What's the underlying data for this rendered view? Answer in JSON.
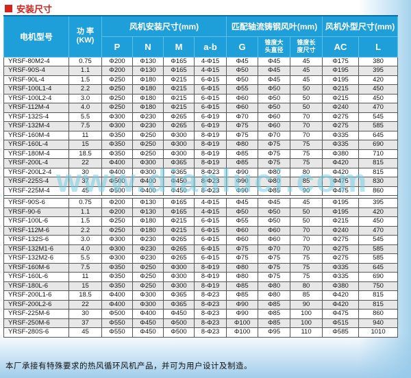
{
  "title": "安装尺寸",
  "watermark": "www.dianluci.com",
  "footer": "本厂承接有特殊要求的热风循环风机产品，并可为用户设计及制造。",
  "colors": {
    "header_bg": "#1e9fd9",
    "title_red": "#d3231c",
    "alt_row": "#e7e7e7",
    "outer_border": "#0b6fa6",
    "watermark_cyan": "#74cee2"
  },
  "table": {
    "headers": {
      "model": "电机型号",
      "power_label": "功 率",
      "power_unit": "(KW)",
      "group_install": "风机安装尺寸(mm)",
      "group_blade": "匹配轴流铸钢风叶(mm)",
      "group_outline": "风机外型尺寸(mm)",
      "sub": {
        "p": "P",
        "n": "N",
        "m": "M",
        "ab": "a-b",
        "g": "G",
        "cone_dia": "锥度大头直径",
        "cone_len": "锥度长度尺寸",
        "ac": "AC",
        "l": "L"
      }
    },
    "columns": [
      "电机型号",
      "功率(KW)",
      "P",
      "N",
      "M",
      "a-b",
      "G",
      "锥度大头直径",
      "锥度长度尺寸",
      "AC",
      "L"
    ],
    "groups": [
      {
        "rows": [
          [
            "YRSF-80M2-4",
            "0.75",
            "Φ200",
            "Φ130",
            "Φ165",
            "4-Φ15",
            "Φ45",
            "Φ45",
            "45",
            "Φ175",
            "380"
          ],
          [
            "YRSF-90S-4",
            "1.1",
            "Φ200",
            "Φ130",
            "Φ165",
            "4-Φ15",
            "Φ50",
            "Φ45",
            "45",
            "Φ195",
            "395"
          ],
          [
            "YRSF-90L-4",
            "1.5",
            "Φ250",
            "Φ180",
            "Φ215",
            "6-Φ15",
            "Φ50",
            "Φ45",
            "45",
            "Φ195",
            "420"
          ],
          [
            "YRSF-100L1-4",
            "2.2",
            "Φ250",
            "Φ180",
            "Φ215",
            "6-Φ15",
            "Φ55",
            "Φ50",
            "50",
            "Φ215",
            "450"
          ],
          [
            "YRSF-100L2-4",
            "3.0",
            "Φ250",
            "Φ180",
            "Φ215",
            "6-Φ15",
            "Φ60",
            "Φ50",
            "50",
            "Φ215",
            "450"
          ],
          [
            "YRSF-112M-4",
            "4.0",
            "Φ250",
            "Φ180",
            "Φ215",
            "6-Φ15",
            "Φ60",
            "Φ50",
            "50",
            "Φ240",
            "470"
          ],
          [
            "YRSF-132S-4",
            "5.5",
            "Φ300",
            "Φ230",
            "Φ265",
            "6-Φ19",
            "Φ70",
            "Φ60",
            "70",
            "Φ275",
            "545"
          ],
          [
            "YRSF-132M-4",
            "7.5",
            "Φ300",
            "Φ230",
            "Φ265",
            "6-Φ19",
            "Φ75",
            "Φ60",
            "70",
            "Φ275",
            "585"
          ],
          [
            "YRSF-160M-4",
            "11",
            "Φ350",
            "Φ250",
            "Φ300",
            "8-Φ19",
            "Φ75",
            "Φ70",
            "70",
            "Φ335",
            "645"
          ],
          [
            "YRSF-160L-4",
            "15",
            "Φ350",
            "Φ250",
            "Φ300",
            "8-Φ19",
            "Φ80",
            "Φ75",
            "75",
            "Φ335",
            "690"
          ],
          [
            "YRSF-180M-4",
            "18.5",
            "Φ350",
            "Φ250",
            "Φ300",
            "8-Φ19",
            "Φ85",
            "Φ75",
            "75",
            "Φ380",
            "710"
          ],
          [
            "YRSF-200L-4",
            "22",
            "Φ400",
            "Φ300",
            "Φ365",
            "8-Φ19",
            "Φ85",
            "Φ75",
            "75",
            "Φ420",
            "815"
          ],
          [
            "YRSF-200L2-4",
            "30",
            "Φ400",
            "Φ300",
            "Φ365",
            "8-Φ23",
            "Φ90",
            "Φ80",
            "80",
            "Φ420",
            "815"
          ],
          [
            "YRSF-225S-4",
            "37",
            "Φ500",
            "Φ400",
            "Φ450",
            "8-Φ23",
            "Φ90",
            "Φ80",
            "85",
            "Φ475",
            "830"
          ],
          [
            "YRSF-225M-4",
            "45",
            "Φ500",
            "Φ400",
            "Φ450",
            "8-Φ23",
            "Φ90",
            "Φ85",
            "90",
            "Φ475",
            "860"
          ]
        ]
      },
      {
        "rows": [
          [
            "YRSF-90S-6",
            "0.75",
            "Φ200",
            "Φ130",
            "Φ165",
            "4-Φ15",
            "Φ45",
            "Φ45",
            "45",
            "Φ195",
            "395"
          ],
          [
            "YRSF-90-6",
            "1.1",
            "Φ200",
            "Φ130",
            "Φ165",
            "4-Φ15",
            "Φ50",
            "Φ50",
            "50",
            "Φ195",
            "420"
          ],
          [
            "YRSF-100L-6",
            "1.5",
            "Φ250",
            "Φ180",
            "Φ215",
            "6-Φ15",
            "Φ55",
            "Φ50",
            "50",
            "Φ215",
            "450"
          ],
          [
            "YRSF-112M-6",
            "2.2",
            "Φ250",
            "Φ180",
            "Φ215",
            "6-Φ15",
            "Φ60",
            "Φ60",
            "70",
            "Φ240",
            "470"
          ],
          [
            "YRSF-132S-6",
            "3.0",
            "Φ300",
            "Φ230",
            "Φ265",
            "6-Φ15",
            "Φ60",
            "Φ60",
            "70",
            "Φ275",
            "545"
          ],
          [
            "YRSF-132M1-6",
            "4.0",
            "Φ300",
            "Φ230",
            "Φ265",
            "6-Φ15",
            "Φ75",
            "Φ70",
            "70",
            "Φ275",
            "585"
          ],
          [
            "YRSF-132M2-6",
            "5.5",
            "Φ300",
            "Φ230",
            "Φ265",
            "6-Φ15",
            "Φ75",
            "Φ75",
            "75",
            "Φ275",
            "585"
          ],
          [
            "YRSF-160M-6",
            "7.5",
            "Φ350",
            "Φ250",
            "Φ300",
            "8-Φ19",
            "Φ80",
            "Φ75",
            "75",
            "Φ335",
            "645"
          ],
          [
            "YRSF-160L-6",
            "11",
            "Φ350",
            "Φ250",
            "Φ300",
            "8-Φ19",
            "Φ80",
            "Φ75",
            "75",
            "Φ335",
            "690"
          ],
          [
            "YRSF-180L-6",
            "15",
            "Φ350",
            "Φ250",
            "Φ300",
            "8-Φ19",
            "Φ85",
            "Φ80",
            "80",
            "Φ380",
            "750"
          ],
          [
            "YRSF-200L1-6",
            "18.5",
            "Φ400",
            "Φ300",
            "Φ365",
            "8-Φ23",
            "Φ85",
            "Φ80",
            "85",
            "Φ420",
            "815"
          ],
          [
            "YRSF-200L2-6",
            "22",
            "Φ400",
            "Φ300",
            "Φ365",
            "8-Φ23",
            "Φ90",
            "Φ85",
            "90",
            "Φ420",
            "815"
          ],
          [
            "YRSF-225M-6",
            "30",
            "Φ500",
            "Φ400",
            "Φ450",
            "8-Φ23",
            "Φ90",
            "Φ85",
            "100",
            "Φ475",
            "860"
          ],
          [
            "YRSF-250M-6",
            "37",
            "Φ550",
            "Φ450",
            "Φ500",
            "8-Φ23",
            "Φ100",
            "Φ85",
            "100",
            "Φ515",
            "940"
          ],
          [
            "YRSF-280S-6",
            "45",
            "Φ550",
            "Φ450",
            "Φ500",
            "8-Φ23",
            "Φ100",
            "Φ95",
            "110",
            "Φ585",
            "1010"
          ]
        ]
      }
    ]
  }
}
